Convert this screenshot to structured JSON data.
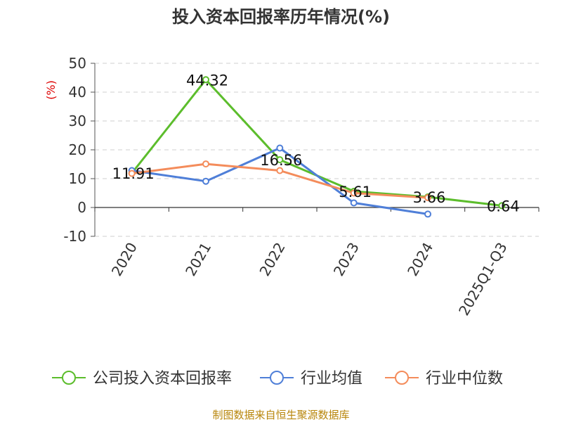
{
  "chart_data": {
    "type": "line",
    "title": "投入资本回报率历年情况(%)",
    "ylabel": "(%)",
    "xlabel": "",
    "ylim": [
      -10,
      50
    ],
    "yticks": [
      -10,
      0,
      10,
      20,
      30,
      40,
      50
    ],
    "grid": true,
    "legend_position": "bottom",
    "categories": [
      "2020",
      "2021",
      "2022",
      "2023",
      "2024",
      "2025Q1-Q3"
    ],
    "series": [
      {
        "name": "公司投入资本回报率",
        "color": "#5cbd2c",
        "values": [
          11.91,
          44.32,
          16.56,
          5.61,
          3.66,
          0.64
        ],
        "labels": [
          "11.91",
          "44.32",
          "16.56",
          "5.61",
          "3.66",
          "0.64"
        ]
      },
      {
        "name": "行业均值",
        "color": "#4f7fd8",
        "values": [
          12.8,
          9.1,
          20.6,
          1.6,
          -2.3,
          null
        ]
      },
      {
        "name": "行业中位数",
        "color": "#f48c5b",
        "values": [
          11.8,
          15.1,
          12.8,
          5.0,
          3.4,
          null
        ]
      }
    ],
    "source": "制图数据来自恒生聚源数据库"
  }
}
